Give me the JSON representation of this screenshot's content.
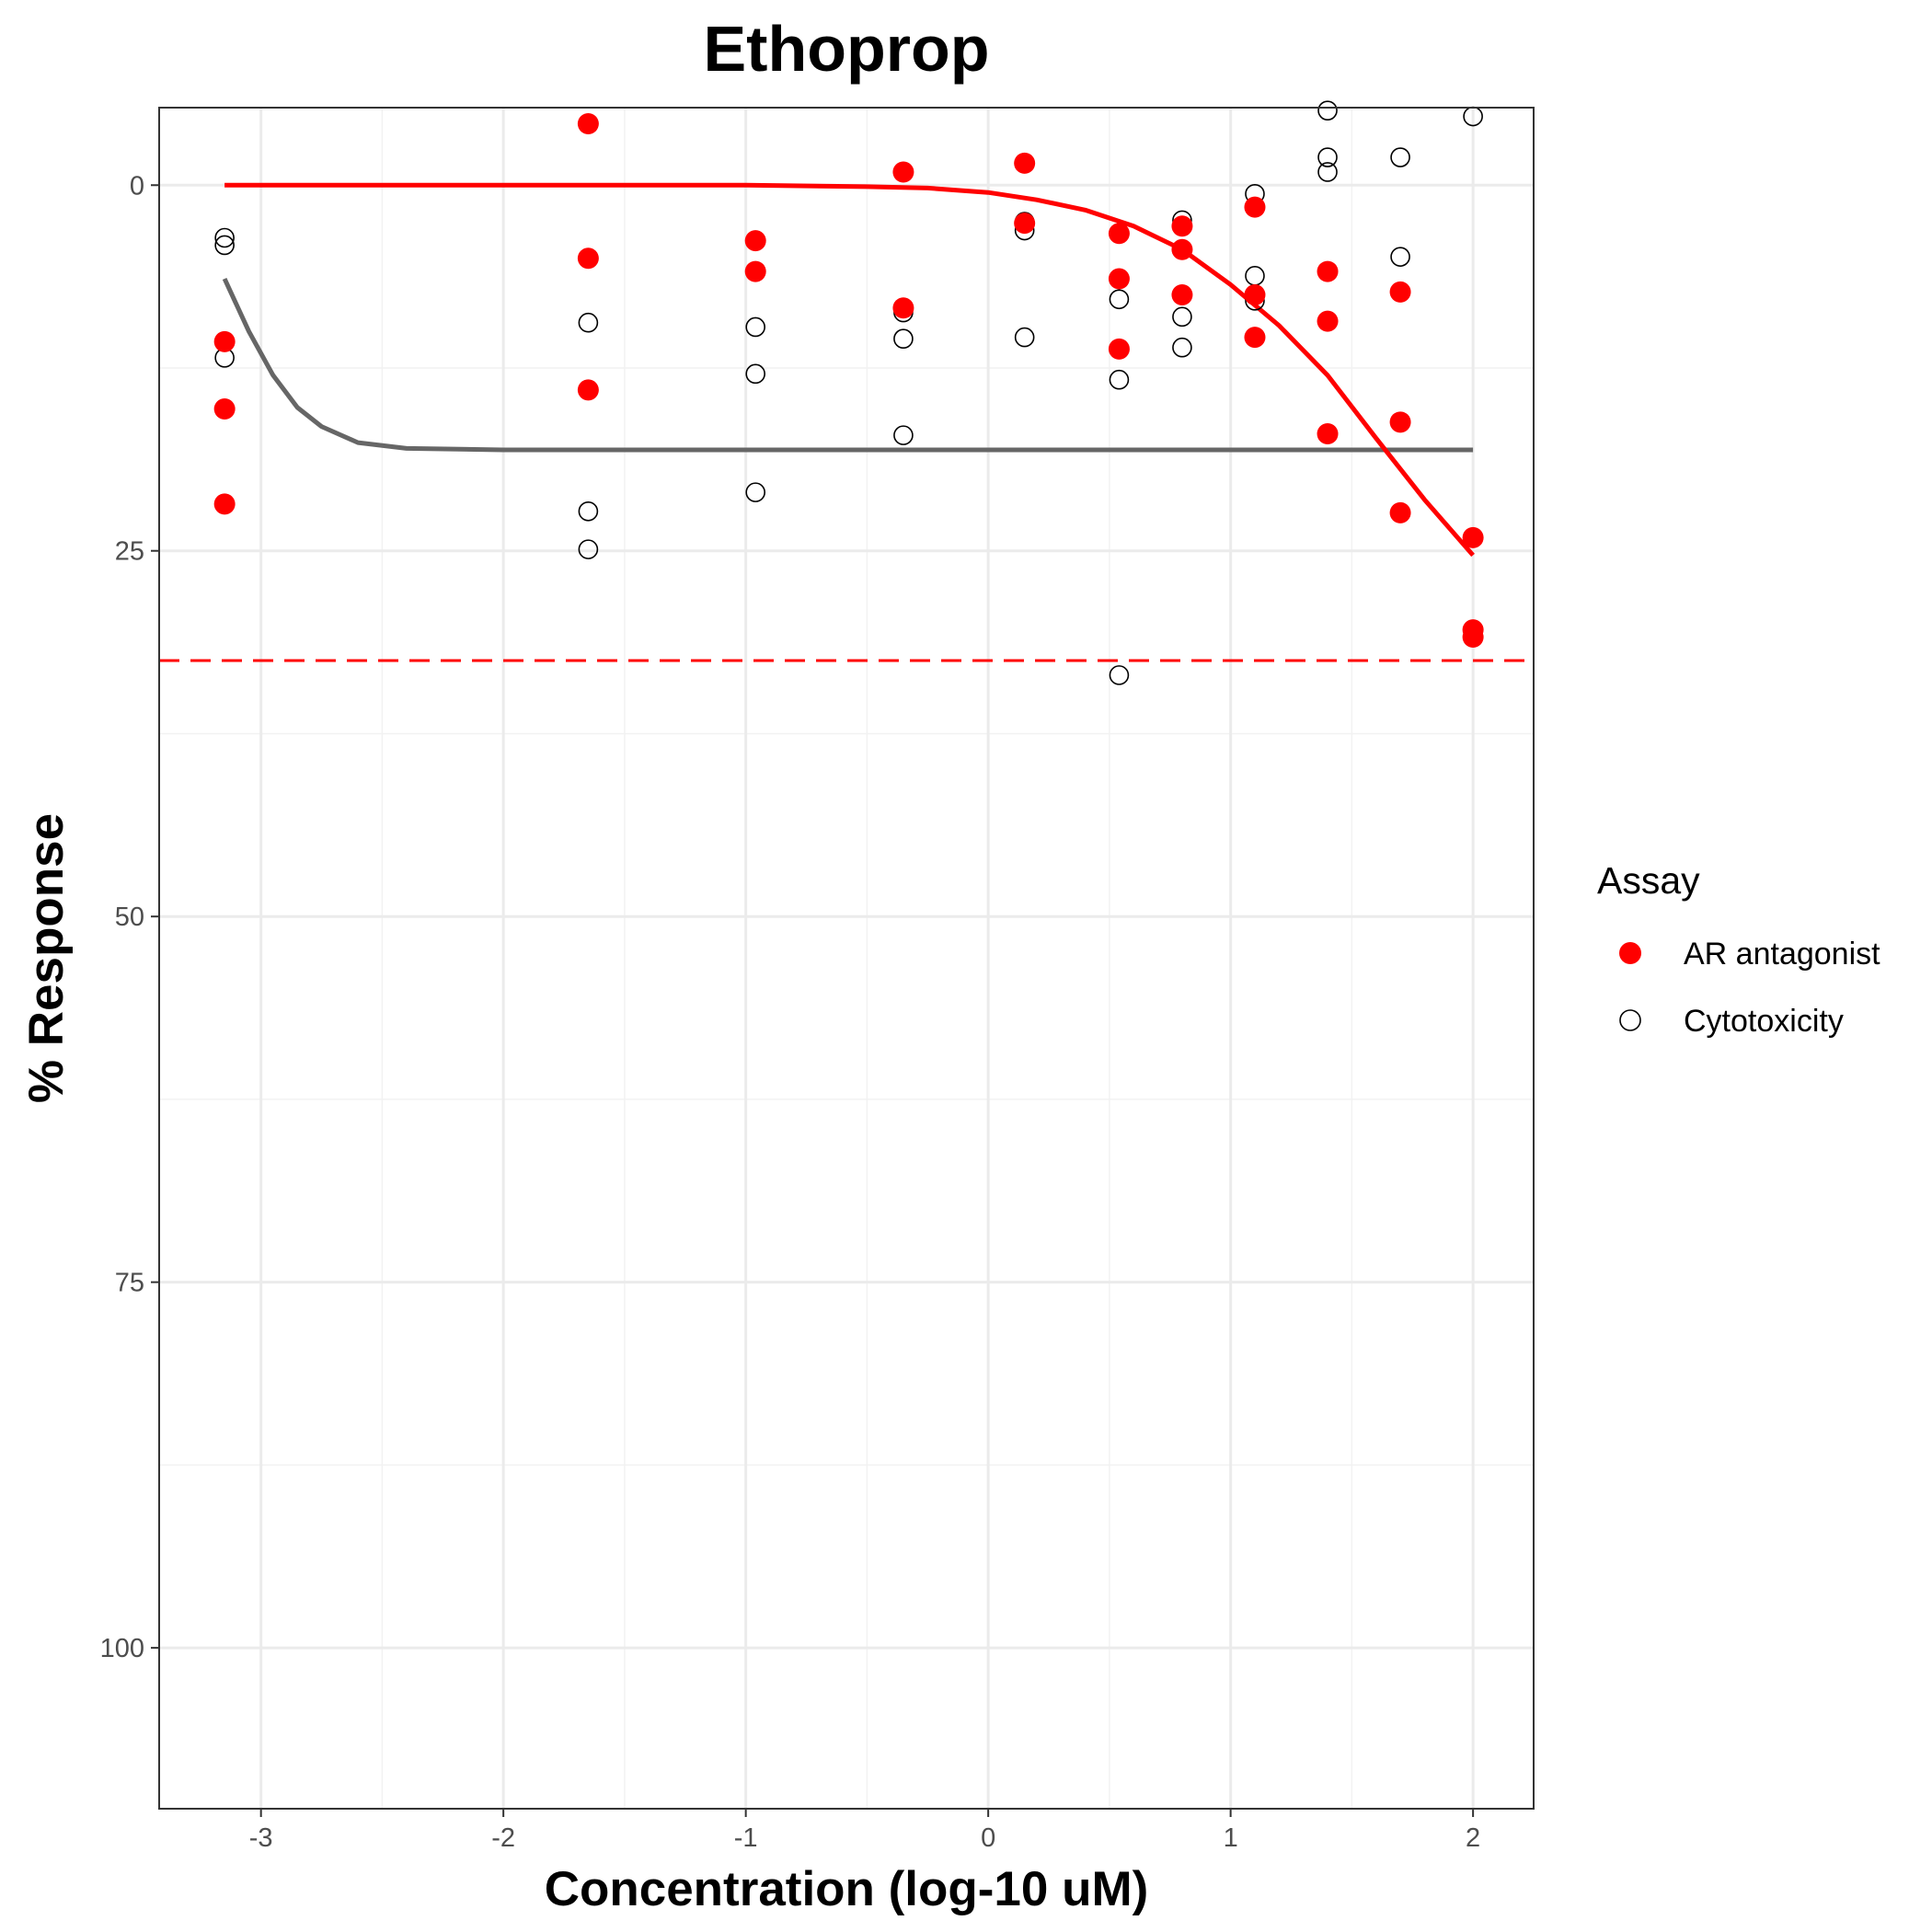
{
  "chart_data": {
    "type": "scatter",
    "title": "Ethoprop",
    "xlabel": "Concentration (log-10 uM)",
    "ylabel": "% Response",
    "xlim": [
      -3.42,
      2.25
    ],
    "ylim": [
      -5.3,
      111
    ],
    "y_reversed": true,
    "x_ticks": [
      -3,
      -2,
      -1,
      0,
      1,
      2
    ],
    "y_ticks": [
      0,
      25,
      50,
      75,
      100
    ],
    "x_minor_ticks": [
      -2.5,
      -1.5,
      -0.5,
      0.5,
      1.5
    ],
    "y_minor_ticks": [
      12.5,
      37.5,
      62.5,
      87.5
    ],
    "grid": true,
    "legend": {
      "title": "Assay",
      "position": "right"
    },
    "threshold_line": {
      "y": 32.5,
      "color": "#ff0000",
      "style": "dashed"
    },
    "series": [
      {
        "name": "AR antagonist",
        "marker": "filled-circle",
        "color": "#ff0000",
        "points": [
          [
            -3.15,
            10.7
          ],
          [
            -3.15,
            15.3
          ],
          [
            -3.15,
            21.8
          ],
          [
            -1.65,
            -4.2
          ],
          [
            -1.65,
            5.0
          ],
          [
            -1.65,
            14.0
          ],
          [
            -0.96,
            3.8
          ],
          [
            -0.96,
            5.9
          ],
          [
            -0.35,
            -0.9
          ],
          [
            -0.35,
            8.4
          ],
          [
            0.15,
            -1.5
          ],
          [
            0.15,
            2.6
          ],
          [
            0.54,
            3.3
          ],
          [
            0.54,
            6.4
          ],
          [
            0.54,
            11.2
          ],
          [
            0.8,
            2.8
          ],
          [
            0.8,
            4.4
          ],
          [
            0.8,
            7.5
          ],
          [
            1.1,
            1.5
          ],
          [
            1.1,
            7.5
          ],
          [
            1.1,
            10.4
          ],
          [
            1.4,
            5.9
          ],
          [
            1.4,
            9.3
          ],
          [
            1.4,
            17.0
          ],
          [
            1.7,
            7.3
          ],
          [
            1.7,
            16.2
          ],
          [
            1.7,
            22.4
          ],
          [
            2.0,
            24.1
          ],
          [
            2.0,
            30.4
          ],
          [
            2.0,
            30.9
          ]
        ],
        "curve": [
          [
            -3.15,
            0.0
          ],
          [
            -2.5,
            0.0
          ],
          [
            -2.0,
            0.0
          ],
          [
            -1.5,
            0.0
          ],
          [
            -1.0,
            0.0
          ],
          [
            -0.5,
            0.1
          ],
          [
            -0.25,
            0.2
          ],
          [
            0.0,
            0.5
          ],
          [
            0.2,
            1.0
          ],
          [
            0.4,
            1.7
          ],
          [
            0.6,
            2.8
          ],
          [
            0.8,
            4.4
          ],
          [
            1.0,
            6.8
          ],
          [
            1.2,
            9.6
          ],
          [
            1.4,
            13.0
          ],
          [
            1.6,
            17.3
          ],
          [
            1.8,
            21.5
          ],
          [
            2.0,
            25.3
          ]
        ]
      },
      {
        "name": "Cytotoxicity",
        "marker": "open-circle",
        "color": "#000000",
        "curve_color": "#666666",
        "points": [
          [
            -3.15,
            3.6
          ],
          [
            -3.15,
            4.1
          ],
          [
            -3.15,
            11.8
          ],
          [
            -1.65,
            9.4
          ],
          [
            -1.65,
            22.3
          ],
          [
            -1.65,
            24.9
          ],
          [
            -0.96,
            9.7
          ],
          [
            -0.96,
            12.9
          ],
          [
            -0.96,
            21.0
          ],
          [
            -0.35,
            8.7
          ],
          [
            -0.35,
            10.5
          ],
          [
            -0.35,
            17.1
          ],
          [
            0.15,
            2.5
          ],
          [
            0.15,
            3.1
          ],
          [
            0.15,
            10.4
          ],
          [
            0.54,
            7.8
          ],
          [
            0.54,
            13.3
          ],
          [
            0.54,
            33.5
          ],
          [
            0.8,
            2.4
          ],
          [
            0.8,
            9.0
          ],
          [
            0.8,
            11.1
          ],
          [
            1.1,
            0.6
          ],
          [
            1.1,
            6.2
          ],
          [
            1.1,
            7.9
          ],
          [
            1.4,
            -5.1
          ],
          [
            1.4,
            -1.9
          ],
          [
            1.4,
            -0.9
          ],
          [
            1.7,
            -1.9
          ],
          [
            1.7,
            4.9
          ],
          [
            2.0,
            -4.7
          ]
        ],
        "curve": [
          [
            -3.15,
            6.4
          ],
          [
            -3.05,
            10.0
          ],
          [
            -2.95,
            13.0
          ],
          [
            -2.85,
            15.2
          ],
          [
            -2.75,
            16.5
          ],
          [
            -2.6,
            17.6
          ],
          [
            -2.4,
            18.0
          ],
          [
            -2.0,
            18.1
          ],
          [
            -1.0,
            18.1
          ],
          [
            0.0,
            18.1
          ],
          [
            1.0,
            18.1
          ],
          [
            2.0,
            18.1
          ]
        ]
      }
    ]
  }
}
